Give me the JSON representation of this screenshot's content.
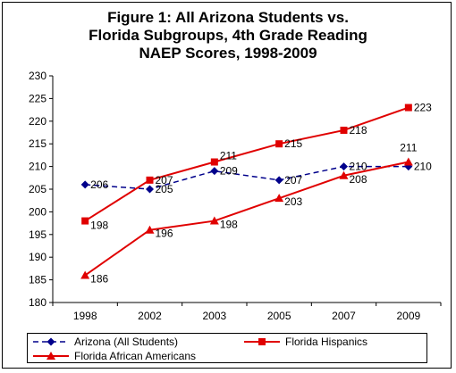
{
  "chart_data": {
    "type": "line",
    "title_lines": [
      "Figure 1: All Arizona Students vs.",
      "Florida Subgroups, 4th Grade Reading",
      "NAEP Scores, 1998-2009"
    ],
    "categories": [
      "1998",
      "2002",
      "2003",
      "2005",
      "2007",
      "2009"
    ],
    "ylim": [
      180,
      230
    ],
    "yticks": [
      180,
      185,
      190,
      195,
      200,
      205,
      210,
      215,
      220,
      225,
      230
    ],
    "grid": false,
    "legend_position": "bottom",
    "series": [
      {
        "name": "Arizona (All Students)",
        "values": [
          206,
          205,
          209,
          207,
          210,
          210
        ],
        "labels": [
          "206",
          "205",
          "209",
          "207",
          "210",
          "210"
        ],
        "color": "#00008B",
        "marker": "diamond",
        "dash": "dashed"
      },
      {
        "name": "Florida Hispanics",
        "values": [
          198,
          207,
          211,
          215,
          218,
          223
        ],
        "labels": [
          "198",
          "207",
          "211",
          "215",
          "218",
          "223"
        ],
        "color": "#E00000",
        "marker": "square",
        "dash": "solid"
      },
      {
        "name": "Florida African Americans",
        "values": [
          186,
          196,
          198,
          203,
          208,
          211
        ],
        "labels": [
          "186",
          "196",
          "198",
          "203",
          "208",
          "211"
        ],
        "color": "#E00000",
        "marker": "triangle",
        "dash": "solid"
      }
    ]
  }
}
